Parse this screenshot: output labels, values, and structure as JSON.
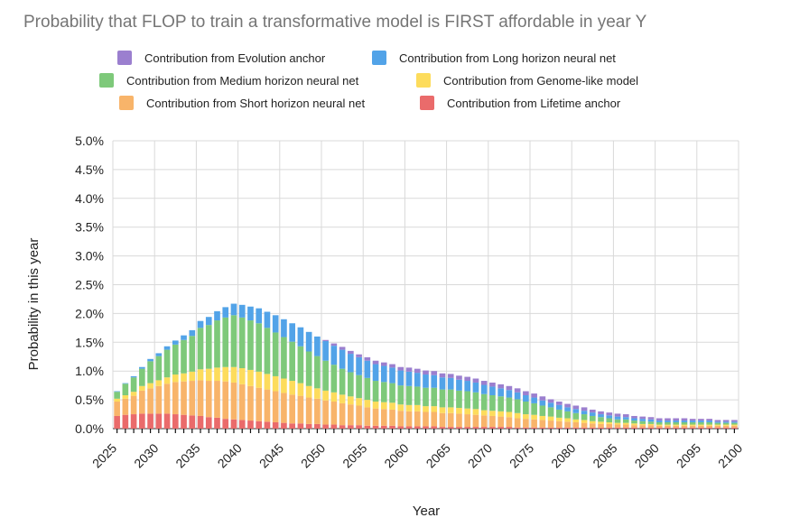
{
  "chart_data": {
    "type": "bar",
    "stacked": true,
    "title": "Probability that FLOP to train a transformative model is FIRST affordable in year Y",
    "xlabel": "Year",
    "ylabel": "Probability in this year",
    "ylim": [
      0,
      5.0
    ],
    "y_ticks": [
      "0.0%",
      "0.5%",
      "1.0%",
      "1.5%",
      "2.0%",
      "2.5%",
      "3.0%",
      "3.5%",
      "4.0%",
      "4.5%",
      "5.0%"
    ],
    "x_ticks": [
      "2025",
      "2030",
      "2035",
      "2040",
      "2045",
      "2050",
      "2055",
      "2060",
      "2065",
      "2070",
      "2075",
      "2080",
      "2085",
      "2090",
      "2095",
      "2100"
    ],
    "x_start": 2025,
    "x_end": 2100,
    "grid": true,
    "legend_position": "top",
    "colors": {
      "lifetime": "#ea6b6b",
      "short": "#f8b46a",
      "genome": "#fddc5c",
      "medium": "#7ec97a",
      "long": "#52a3e8",
      "evolution": "#9b7fcf"
    },
    "series": [
      {
        "key": "evolution",
        "name": "Contribution from Evolution anchor",
        "values": [
          0,
          0,
          0,
          0,
          0,
          0,
          0,
          0,
          0,
          0,
          0,
          0,
          0,
          0,
          0,
          0,
          0,
          0,
          0,
          0,
          0,
          0,
          0,
          0,
          0,
          0.02,
          0.04,
          0.05,
          0.05,
          0.05,
          0.06,
          0.06,
          0.06,
          0.06,
          0.06,
          0.07,
          0.07,
          0.07,
          0.07,
          0.07,
          0.07,
          0.07,
          0.07,
          0.07,
          0.07,
          0.07,
          0.07,
          0.07,
          0.07,
          0.07,
          0.07,
          0.07,
          0.06,
          0.06,
          0.06,
          0.06,
          0.06,
          0.05,
          0.05,
          0.05,
          0.05,
          0.05,
          0.04,
          0.04,
          0.04,
          0.04,
          0.04,
          0.04,
          0.04,
          0.03,
          0.03,
          0.03,
          0.03,
          0.03,
          0.03
        ]
      },
      {
        "key": "long",
        "name": "Contribution from Long horizon neural net",
        "values": [
          0.01,
          0.01,
          0.02,
          0.03,
          0.04,
          0.05,
          0.06,
          0.07,
          0.08,
          0.1,
          0.12,
          0.14,
          0.16,
          0.18,
          0.2,
          0.22,
          0.24,
          0.26,
          0.28,
          0.3,
          0.31,
          0.32,
          0.33,
          0.34,
          0.34,
          0.34,
          0.33,
          0.33,
          0.32,
          0.31,
          0.3,
          0.29,
          0.28,
          0.27,
          0.26,
          0.25,
          0.24,
          0.23,
          0.22,
          0.21,
          0.2,
          0.19,
          0.18,
          0.17,
          0.16,
          0.15,
          0.14,
          0.13,
          0.12,
          0.11,
          0.1,
          0.09,
          0.08,
          0.08,
          0.07,
          0.07,
          0.06,
          0.06,
          0.05,
          0.05,
          0.05,
          0.04,
          0.04,
          0.04,
          0.04,
          0.03,
          0.03,
          0.03,
          0.03,
          0.03,
          0.03,
          0.03,
          0.02,
          0.02,
          0.02
        ]
      },
      {
        "key": "medium",
        "name": "Contribution from Medium horizon neural net",
        "values": [
          0.12,
          0.2,
          0.25,
          0.3,
          0.38,
          0.42,
          0.48,
          0.52,
          0.58,
          0.62,
          0.72,
          0.76,
          0.82,
          0.86,
          0.9,
          0.88,
          0.86,
          0.84,
          0.8,
          0.76,
          0.72,
          0.68,
          0.64,
          0.6,
          0.56,
          0.52,
          0.48,
          0.45,
          0.42,
          0.4,
          0.38,
          0.36,
          0.35,
          0.34,
          0.33,
          0.33,
          0.32,
          0.32,
          0.32,
          0.31,
          0.31,
          0.3,
          0.3,
          0.29,
          0.28,
          0.27,
          0.26,
          0.25,
          0.24,
          0.22,
          0.2,
          0.18,
          0.16,
          0.14,
          0.12,
          0.11,
          0.1,
          0.09,
          0.08,
          0.07,
          0.06,
          0.06,
          0.05,
          0.05,
          0.04,
          0.04,
          0.04,
          0.04,
          0.04,
          0.04,
          0.04,
          0.04,
          0.03,
          0.03,
          0.03
        ]
      },
      {
        "key": "genome",
        "name": "Contribution from Genome-like model",
        "values": [
          0.05,
          0.06,
          0.07,
          0.08,
          0.09,
          0.1,
          0.11,
          0.13,
          0.14,
          0.16,
          0.19,
          0.21,
          0.23,
          0.25,
          0.27,
          0.28,
          0.28,
          0.28,
          0.27,
          0.26,
          0.25,
          0.24,
          0.22,
          0.2,
          0.18,
          0.17,
          0.16,
          0.15,
          0.14,
          0.13,
          0.13,
          0.12,
          0.12,
          0.12,
          0.11,
          0.11,
          0.11,
          0.1,
          0.1,
          0.1,
          0.1,
          0.1,
          0.1,
          0.1,
          0.09,
          0.09,
          0.09,
          0.09,
          0.09,
          0.08,
          0.08,
          0.07,
          0.07,
          0.06,
          0.06,
          0.05,
          0.05,
          0.04,
          0.04,
          0.03,
          0.03,
          0.03,
          0.03,
          0.02,
          0.02,
          0.02,
          0.02,
          0.02,
          0.02,
          0.02,
          0.02,
          0.02,
          0.02,
          0.02,
          0.02
        ]
      },
      {
        "key": "short",
        "name": "Contribution from Short horizon neural net",
        "values": [
          0.25,
          0.28,
          0.32,
          0.4,
          0.44,
          0.48,
          0.52,
          0.56,
          0.58,
          0.6,
          0.62,
          0.63,
          0.64,
          0.65,
          0.64,
          0.62,
          0.6,
          0.58,
          0.56,
          0.54,
          0.52,
          0.5,
          0.48,
          0.46,
          0.44,
          0.42,
          0.4,
          0.38,
          0.36,
          0.34,
          0.32,
          0.3,
          0.29,
          0.28,
          0.27,
          0.26,
          0.26,
          0.25,
          0.25,
          0.24,
          0.24,
          0.23,
          0.22,
          0.21,
          0.2,
          0.19,
          0.18,
          0.17,
          0.16,
          0.15,
          0.14,
          0.13,
          0.12,
          0.11,
          0.1,
          0.09,
          0.08,
          0.07,
          0.06,
          0.06,
          0.05,
          0.05,
          0.04,
          0.04,
          0.04,
          0.03,
          0.03,
          0.03,
          0.03,
          0.03,
          0.03,
          0.03,
          0.03,
          0.03,
          0.03
        ]
      },
      {
        "key": "lifetime",
        "name": "Contribution from Lifetime anchor",
        "values": [
          0.22,
          0.24,
          0.25,
          0.26,
          0.26,
          0.26,
          0.26,
          0.25,
          0.24,
          0.23,
          0.22,
          0.2,
          0.19,
          0.17,
          0.16,
          0.15,
          0.14,
          0.13,
          0.12,
          0.11,
          0.1,
          0.09,
          0.09,
          0.08,
          0.08,
          0.07,
          0.07,
          0.06,
          0.06,
          0.06,
          0.05,
          0.05,
          0.05,
          0.05,
          0.04,
          0.04,
          0.04,
          0.04,
          0.04,
          0.03,
          0.03,
          0.03,
          0.03,
          0.03,
          0.03,
          0.03,
          0.03,
          0.03,
          0.02,
          0.02,
          0.02,
          0.02,
          0.02,
          0.02,
          0.02,
          0.02,
          0.02,
          0.02,
          0.02,
          0.02,
          0.02,
          0.02,
          0.02,
          0.02,
          0.02,
          0.02,
          0.02,
          0.02,
          0.02,
          0.02,
          0.02,
          0.02,
          0.02,
          0.02,
          0.02
        ]
      }
    ]
  }
}
